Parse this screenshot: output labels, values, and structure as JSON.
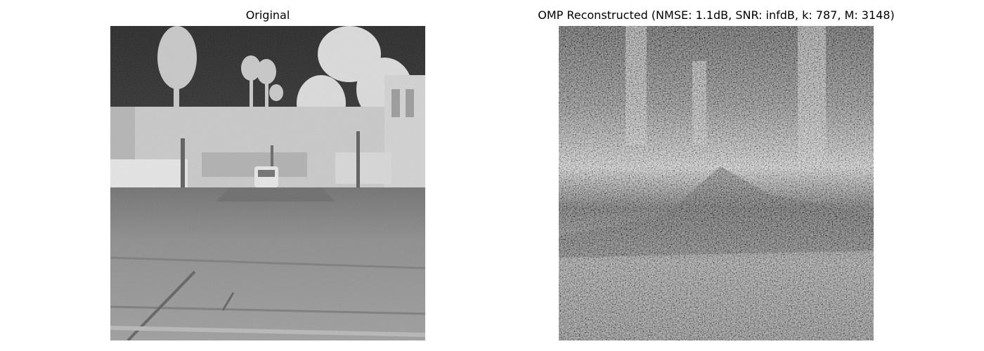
{
  "panels": [
    {
      "title": "Original",
      "image": "grayscale thermal street scene"
    },
    {
      "title": "OMP Reconstructed (NMSE: 1.1dB, SNR: infdB, k: 787, M: 3148)",
      "image": "noisy grayscale reconstruction"
    }
  ],
  "colors": {
    "background": "#ffffff",
    "text": "#000000"
  }
}
